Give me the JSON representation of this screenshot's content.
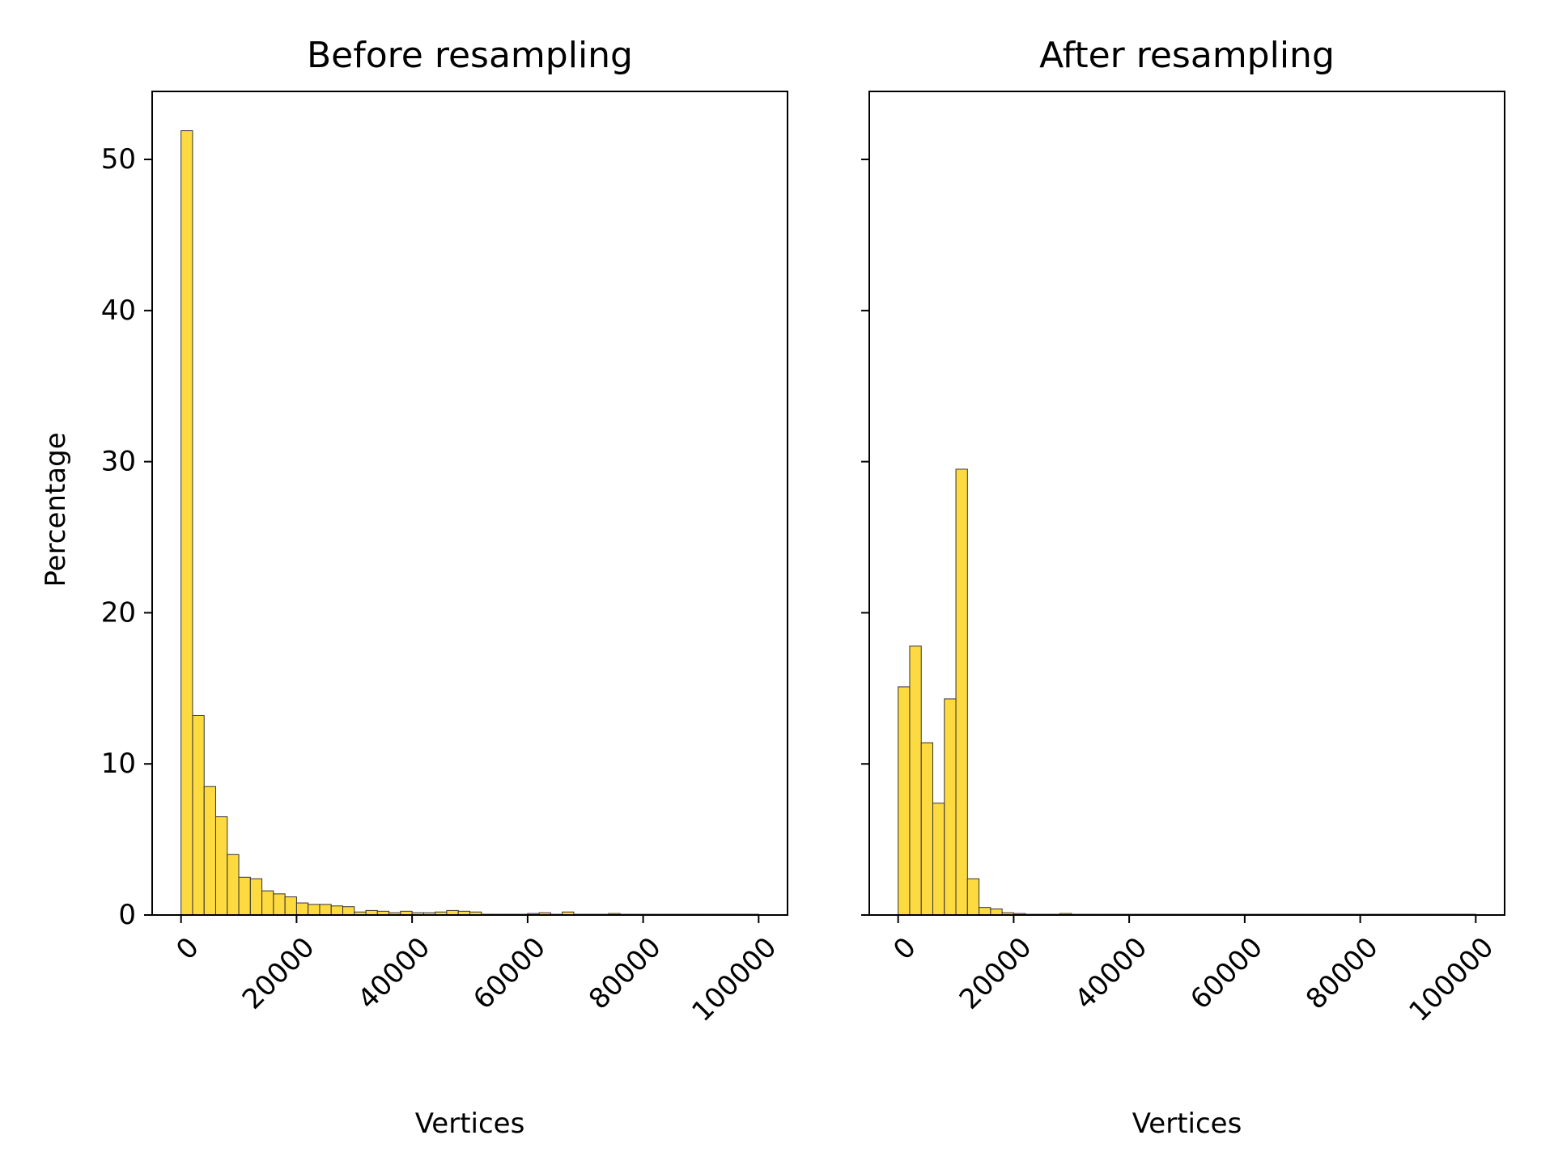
{
  "figure": {
    "ylabel": "Percentage",
    "bar_color": "#FDDA3F",
    "edge_color": "#333333"
  },
  "chart_data": [
    {
      "type": "bar",
      "title": "Before resampling",
      "xlabel": "Vertices",
      "ylabel": "Percentage",
      "xlim": [
        -5000,
        105000
      ],
      "ylim": [
        0,
        54.5
      ],
      "xticks": [
        0,
        20000,
        40000,
        60000,
        80000,
        100000
      ],
      "xtick_labels": [
        "0",
        "20000",
        "40000",
        "60000",
        "80000",
        "100000"
      ],
      "yticks": [
        0,
        10,
        20,
        30,
        40,
        50
      ],
      "ytick_labels": [
        "0",
        "10",
        "20",
        "30",
        "40",
        "50"
      ],
      "bin_start": 0,
      "bin_width": 2000,
      "values": [
        51.9,
        13.2,
        8.5,
        6.5,
        4.0,
        2.5,
        2.4,
        1.6,
        1.4,
        1.2,
        0.8,
        0.7,
        0.7,
        0.6,
        0.55,
        0.2,
        0.3,
        0.25,
        0.15,
        0.25,
        0.15,
        0.15,
        0.2,
        0.3,
        0.25,
        0.2,
        0.05,
        0.05,
        0.05,
        0.05,
        0.1,
        0.15,
        0.05,
        0.2,
        0.05,
        0.05,
        0.05,
        0.1,
        0.05,
        0.05,
        0.05,
        0.05,
        0.05,
        0.05,
        0.05,
        0.05,
        0.05,
        0.05,
        0.05,
        0.05
      ]
    },
    {
      "type": "bar",
      "title": "After resampling",
      "xlabel": "Vertices",
      "ylabel": "",
      "xlim": [
        -5000,
        105000
      ],
      "ylim": [
        0,
        54.5
      ],
      "xticks": [
        0,
        20000,
        40000,
        60000,
        80000,
        100000
      ],
      "xtick_labels": [
        "0",
        "20000",
        "40000",
        "60000",
        "80000",
        "100000"
      ],
      "yticks": [
        0,
        10,
        20,
        30,
        40,
        50
      ],
      "ytick_labels": [],
      "bin_start": 0,
      "bin_width": 2000,
      "values": [
        15.1,
        17.8,
        11.4,
        7.4,
        14.3,
        29.5,
        2.4,
        0.5,
        0.4,
        0.15,
        0.1,
        0.05,
        0.05,
        0.05,
        0.1,
        0.05,
        0.05,
        0.05,
        0.05,
        0.05,
        0.05,
        0.05,
        0.05,
        0.05,
        0.05,
        0.05,
        0.05,
        0.05,
        0.05,
        0.05,
        0.05,
        0.05,
        0.05,
        0.05,
        0.05,
        0.05,
        0.05,
        0.05,
        0.05,
        0.05,
        0.05,
        0.05,
        0.05,
        0.05,
        0.05,
        0.05,
        0.05,
        0.05,
        0.05,
        0.05
      ]
    }
  ]
}
